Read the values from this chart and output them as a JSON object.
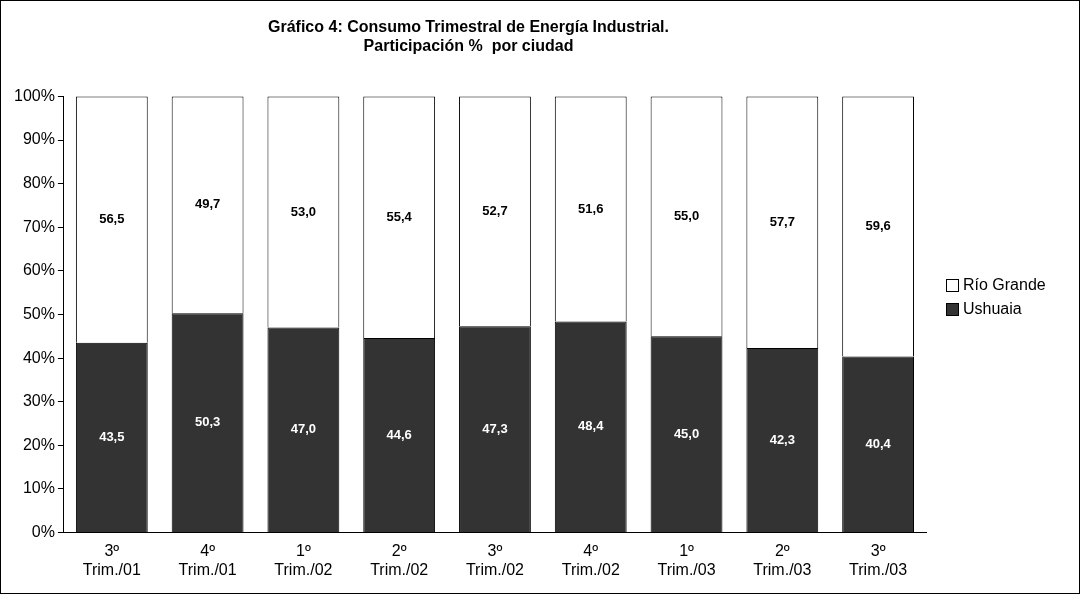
{
  "chart_data": {
    "type": "bar",
    "stacked": true,
    "title": "Gráfico 4: Consumo Trimestral de Energía Industrial.\nParticipación %  por ciudad",
    "categories": [
      "3º\nTrim./01",
      "4º\nTrim./01",
      "1º\nTrim./02",
      "2º\nTrim./02",
      "3º\nTrim./02",
      "4º\nTrim./02",
      "1º\nTrim./03",
      "2º\nTrim./03",
      "3º\nTrim./03"
    ],
    "series": [
      {
        "name": "Ushuaia",
        "color": "#333333",
        "values": [
          43.5,
          50.3,
          47.0,
          44.6,
          47.3,
          48.4,
          45.0,
          42.3,
          40.4
        ],
        "value_labels": [
          "43,5",
          "50,3",
          "47,0",
          "44,6",
          "47,3",
          "48,4",
          "45,0",
          "42,3",
          "40,4"
        ]
      },
      {
        "name": "Río Grande",
        "color": "#ffffff",
        "values": [
          56.5,
          49.7,
          53.0,
          55.4,
          52.7,
          51.6,
          55.0,
          57.7,
          59.6
        ],
        "value_labels": [
          "56,5",
          "49,7",
          "53,0",
          "55,4",
          "52,7",
          "51,6",
          "55,0",
          "57,7",
          "59,6"
        ]
      }
    ],
    "ylim": [
      0,
      100
    ],
    "yticks": [
      {
        "value": 0,
        "label": "0%"
      },
      {
        "value": 10,
        "label": "10%"
      },
      {
        "value": 20,
        "label": "20%"
      },
      {
        "value": 30,
        "label": "30%"
      },
      {
        "value": 40,
        "label": "40%"
      },
      {
        "value": 50,
        "label": "50%"
      },
      {
        "value": 60,
        "label": "60%"
      },
      {
        "value": 70,
        "label": "70%"
      },
      {
        "value": 80,
        "label": "80%"
      },
      {
        "value": 90,
        "label": "90%"
      },
      {
        "value": 100,
        "label": "100%"
      }
    ],
    "grid": false,
    "legend": "right"
  }
}
